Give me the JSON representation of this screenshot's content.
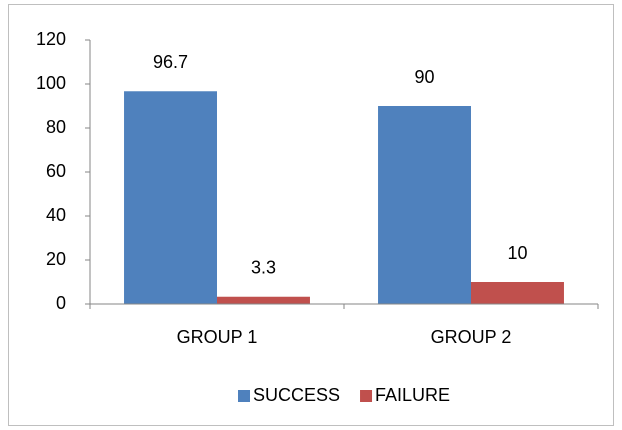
{
  "chart_data": {
    "type": "bar",
    "categories": [
      "GROUP 1",
      "GROUP 2"
    ],
    "series": [
      {
        "name": "SUCCESS",
        "color": "#4f81bd",
        "values": [
          96.7,
          90
        ]
      },
      {
        "name": "FAILURE",
        "color": "#c0504d",
        "values": [
          3.3,
          10
        ]
      }
    ],
    "ylim": [
      0,
      120
    ],
    "yticks": [
      0,
      20,
      40,
      60,
      80,
      100,
      120
    ],
    "grid": false,
    "legend": "bottom"
  }
}
